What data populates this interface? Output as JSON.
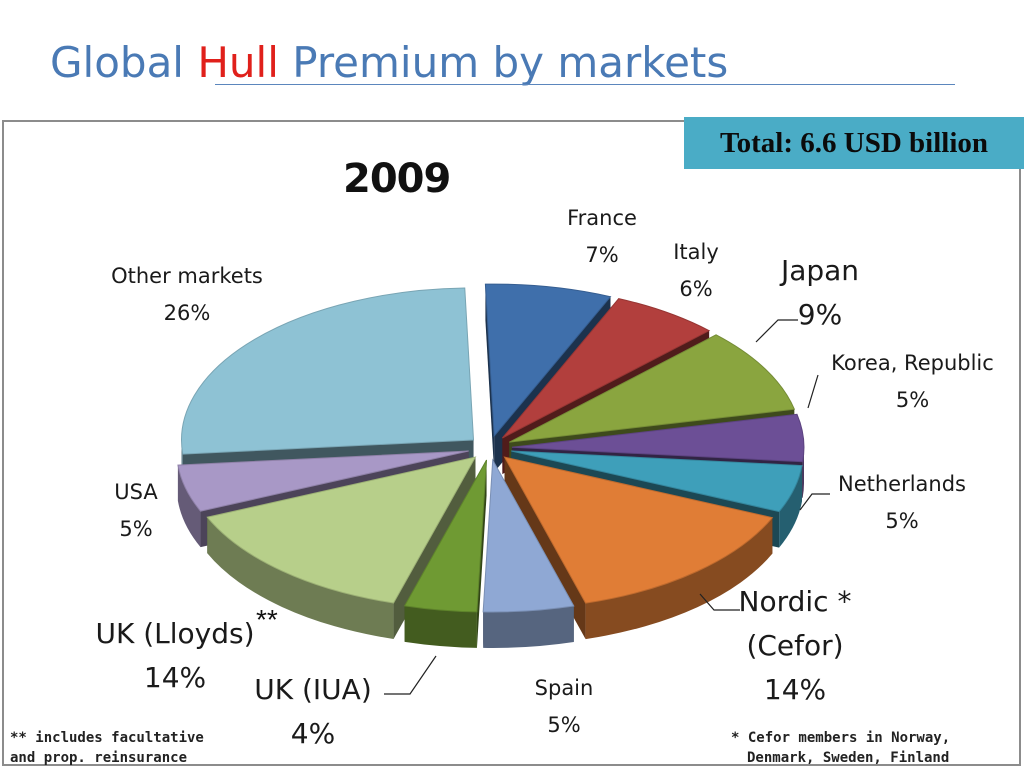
{
  "slide": {
    "title_parts": [
      "Global ",
      "Hull",
      " Premium by markets"
    ],
    "total_label": "Total: 6.6 USD billion",
    "footnote_left": [
      "** includes facultative",
      "and prop. reinsurance"
    ],
    "footnote_right": [
      "* Cefor members in Norway,",
      "Denmark, Sweden, Finland"
    ]
  },
  "chart_data": {
    "type": "pie",
    "title": "2009",
    "style": "exploded 3D pie",
    "units": "percent of global hull premium",
    "slices": [
      {
        "name": "France",
        "value": 7,
        "display_name": [
          "France"
        ],
        "value_label": "7%",
        "color": "#3f6fab"
      },
      {
        "name": "Italy",
        "value": 6,
        "display_name": [
          "Italy"
        ],
        "value_label": "6%",
        "color": "#b23f3d"
      },
      {
        "name": "Japan",
        "value": 9,
        "display_name": [
          "Japan"
        ],
        "value_label": "9%",
        "color": "#8aa53f"
      },
      {
        "name": "Korea, Republic",
        "value": 5,
        "display_name": [
          "Korea, Republic"
        ],
        "value_label": "5%",
        "color": "#6c4f96"
      },
      {
        "name": "Netherlands",
        "value": 5,
        "display_name": [
          "Netherlands"
        ],
        "value_label": "5%",
        "color": "#3e9fba"
      },
      {
        "name": "Nordic * (Cefor)",
        "value": 14,
        "display_name": [
          "Nordic *",
          "(Cefor)"
        ],
        "value_label": "14%",
        "color": "#e07d36"
      },
      {
        "name": "Spain",
        "value": 5,
        "display_name": [
          "Spain"
        ],
        "value_label": "5%",
        "color": "#8fa8d4"
      },
      {
        "name": "UK (IUA)",
        "value": 4,
        "display_name": [
          "UK (IUA)"
        ],
        "value_label": "4%",
        "color": "#6f9a33"
      },
      {
        "name": "UK (Lloyds)**",
        "value": 14,
        "display_name": [
          "UK (Lloyds)"
        ],
        "value_label": "14%",
        "color": "#b7cf8a"
      },
      {
        "name": "USA",
        "value": 5,
        "display_name": [
          "USA"
        ],
        "value_label": "5%",
        "color": "#a898c6"
      },
      {
        "name": "Other markets",
        "value": 26,
        "display_name": [
          "Other markets"
        ],
        "value_label": "26%",
        "color": "#8ec2d4"
      }
    ],
    "annotation": "**"
  }
}
